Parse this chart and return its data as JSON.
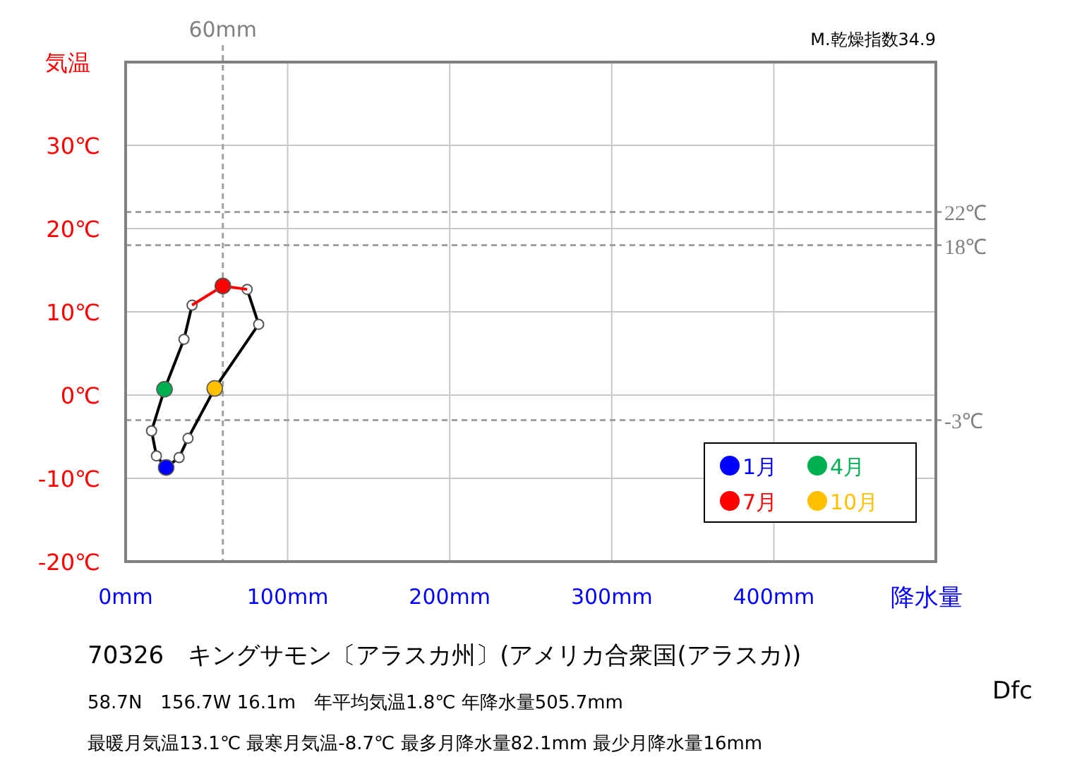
{
  "chart_data": {
    "type": "line",
    "title": "70326　キングサモン〔アラスカ州〕(アメリカ合衆国(アラスカ))",
    "xlabel": "降水量",
    "ylabel": "気温",
    "xlim": [
      0,
      500
    ],
    "ylim": [
      -20,
      40
    ],
    "xticks": [
      {
        "value": 0,
        "label": "0mm"
      },
      {
        "value": 100,
        "label": "100mm"
      },
      {
        "value": 200,
        "label": "200mm"
      },
      {
        "value": 300,
        "label": "300mm"
      },
      {
        "value": 400,
        "label": "400mm"
      },
      {
        "value": 500,
        "label": null
      }
    ],
    "yticks": [
      {
        "value": -20,
        "label": "-20℃"
      },
      {
        "value": -10,
        "label": "-10℃"
      },
      {
        "value": 0,
        "label": "0℃"
      },
      {
        "value": 10,
        "label": "10℃"
      },
      {
        "value": 20,
        "label": "20℃"
      },
      {
        "value": 30,
        "label": "30℃"
      },
      {
        "value": 40,
        "label": null
      }
    ],
    "grid": true,
    "legend": "bottom right",
    "line_style": "solid",
    "ref_lines": [
      {
        "axis": "y",
        "value": 22,
        "label": "22℃",
        "color": "#a0a0a0",
        "line_style": "dashed"
      },
      {
        "axis": "y",
        "value": 18,
        "label": "18℃",
        "color": "#a0a0a0",
        "line_style": "dashed"
      },
      {
        "axis": "y",
        "value": -3,
        "label": "-3℃",
        "color": "#a0a0a0",
        "line_style": "dashed"
      },
      {
        "axis": "x",
        "value": 60,
        "label": "60mm",
        "color": "#a0a0a0",
        "line_style": "dashed"
      }
    ],
    "series": [
      {
        "color": "#000000",
        "marker": "circle",
        "x": [
          75,
          82.1,
          55,
          38.5,
          33,
          25,
          19,
          16,
          24,
          36,
          41
        ],
        "values": [
          12.7,
          8.5,
          0.8,
          -5.2,
          -7.5,
          -8.7,
          -7.3,
          -4.3,
          0.7,
          6.7,
          10.8
        ]
      },
      {
        "color": "#ff0000",
        "marker": "none",
        "x": [
          41,
          60,
          75
        ],
        "values": [
          10.8,
          13.1,
          12.7
        ]
      },
      {
        "type": "scatter",
        "name": "1月",
        "color": "#0000ff",
        "marker": "circle",
        "x": [
          25
        ],
        "values": [
          -8.7
        ]
      },
      {
        "type": "scatter",
        "name": "4月",
        "color": "#00b050",
        "marker": "circle",
        "x": [
          24
        ],
        "values": [
          0.7
        ]
      },
      {
        "type": "scatter",
        "name": "7月",
        "color": "#ff0000",
        "marker": "circle",
        "x": [
          60
        ],
        "values": [
          13.1
        ]
      },
      {
        "type": "scatter",
        "name": "10月",
        "color": "#ffc000",
        "marker": "circle",
        "x": [
          55
        ],
        "values": [
          0.8
        ]
      }
    ],
    "annotations": [
      "M.乾燥指数34.9",
      "58.7N　156.7W 16.1m　年平均気温1.8℃ 年降水量505.7mm",
      "最暖月気温13.1℃ 最寒月気温-8.7℃ 最多月降水量82.1mm 最少月降水量16mm",
      "Dfc"
    ]
  }
}
